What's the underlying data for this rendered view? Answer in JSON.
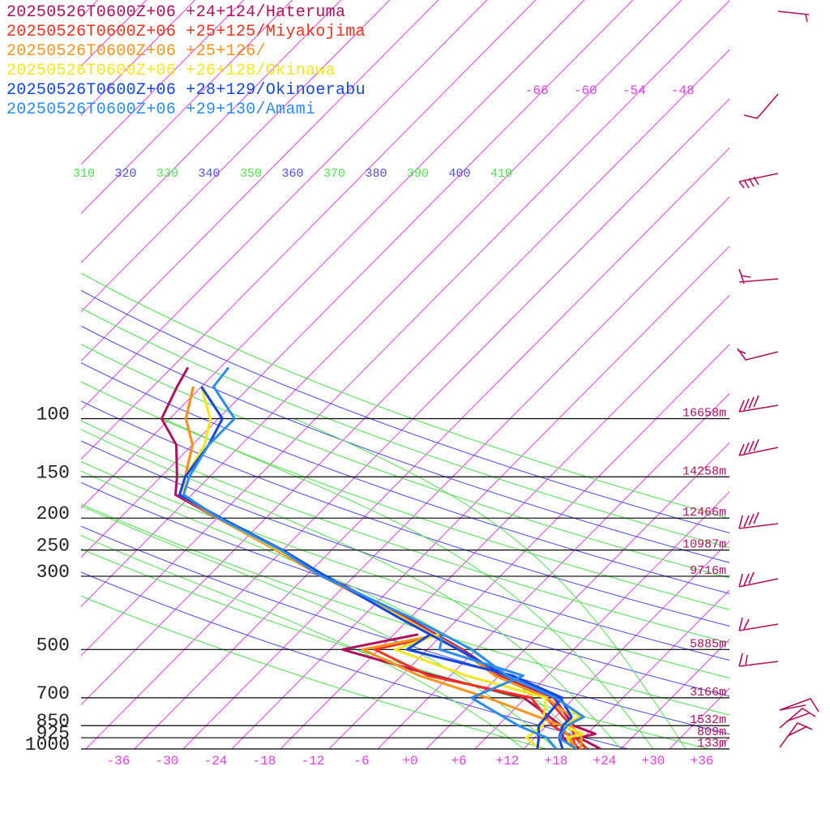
{
  "chart_data": {
    "type": "skew-t",
    "legend_placement": "top-left",
    "pressure_ticks": [
      "100",
      "150",
      "200",
      "250",
      "300",
      "500",
      "700",
      "850",
      "925",
      "1000"
    ],
    "temperature_ticks": [
      "-36",
      "-30",
      "-24",
      "-18",
      "-12",
      "-6",
      "+0",
      "+6",
      "+12",
      "+18",
      "+24",
      "+30",
      "+36"
    ],
    "upper_temperature_ticks": [
      "-66",
      "-60",
      "-54",
      "-48"
    ],
    "theta_labels": [
      "310",
      "320",
      "330",
      "340",
      "350",
      "360",
      "370",
      "380",
      "390",
      "400",
      "410"
    ],
    "height_labels": [
      {
        "p": 100,
        "text": "16658m"
      },
      {
        "p": 150,
        "text": "14258m"
      },
      {
        "p": 200,
        "text": "12466m"
      },
      {
        "p": 250,
        "text": "10987m"
      },
      {
        "p": 300,
        "text": "9716m"
      },
      {
        "p": 500,
        "text": "5885m"
      },
      {
        "p": 700,
        "text": "3166m"
      },
      {
        "p": 850,
        "text": "1532m"
      },
      {
        "p": 925,
        "text": "809m"
      },
      {
        "p": 1000,
        "text": "133m"
      }
    ],
    "series": [
      {
        "name": "20250526T0600Z+06 +24+124/Hateruma",
        "color": "#b0105c",
        "temperature": [
          [
            1000,
            23.5
          ],
          [
            925,
            19.5
          ],
          [
            900,
            21.0
          ],
          [
            850,
            17.3
          ],
          [
            700,
            11.5
          ],
          [
            600,
            2.3
          ],
          [
            500,
            -5.7
          ],
          [
            400,
            -16.5
          ],
          [
            300,
            -31.6
          ],
          [
            250,
            -40.5
          ],
          [
            200,
            -52.0
          ],
          [
            170,
            -60.0
          ],
          [
            150,
            -62.0
          ],
          [
            120,
            -66.0
          ],
          [
            100,
            -71.0
          ],
          [
            80,
            -73.0
          ],
          [
            70,
            -74.0
          ]
        ],
        "dewpoint": [
          [
            1000,
            21.0
          ],
          [
            925,
            17.5
          ],
          [
            850,
            15.8
          ],
          [
            700,
            7.8
          ],
          [
            600,
            -6.0
          ],
          [
            500,
            -20.5
          ],
          [
            450,
            -13.0
          ]
        ]
      },
      {
        "name": "20250526T0600Z+06 +25+125/Miyakojima",
        "color": "#f0321e",
        "temperature": [
          [
            1000,
            21.8
          ],
          [
            925,
            19.0
          ],
          [
            850,
            17.0
          ],
          [
            700,
            10.6
          ],
          [
            600,
            1.7
          ],
          [
            500,
            -6.0
          ],
          [
            400,
            -17.0
          ],
          [
            300,
            -32.0
          ],
          [
            250,
            -40.8
          ],
          [
            200,
            -52.0
          ],
          [
            170,
            -59.5
          ],
          [
            150,
            -61.0
          ],
          [
            120,
            -64.0
          ],
          [
            100,
            -68.0
          ],
          [
            80,
            -71.0
          ]
        ],
        "dewpoint": [
          [
            1000,
            20.5
          ],
          [
            925,
            18.7
          ],
          [
            850,
            14.7
          ],
          [
            700,
            8.7
          ],
          [
            600,
            -6.7
          ],
          [
            500,
            -16.5
          ],
          [
            450,
            -10.0
          ]
        ]
      },
      {
        "name": "20250526T0600Z+06 +25+126/",
        "color": "#f7941d",
        "temperature": [
          [
            1000,
            21.0
          ],
          [
            925,
            19.8
          ],
          [
            850,
            17.0
          ],
          [
            800,
            16.0
          ],
          [
            700,
            10.6
          ],
          [
            600,
            1.5
          ],
          [
            500,
            -6.0
          ],
          [
            400,
            -16.9
          ],
          [
            300,
            -32.0
          ],
          [
            250,
            -40.8
          ],
          [
            200,
            -52.0
          ],
          [
            170,
            -59.5
          ],
          [
            150,
            -61.0
          ],
          [
            120,
            -64.0
          ],
          [
            100,
            -68.0
          ],
          [
            80,
            -71.0
          ]
        ],
        "dewpoint": [
          [
            1000,
            20.5
          ],
          [
            925,
            18.3
          ],
          [
            850,
            15.8
          ],
          [
            700,
            3.3
          ],
          [
            600,
            -7.8
          ],
          [
            500,
            -18.0
          ],
          [
            450,
            -10.3
          ]
        ]
      },
      {
        "name": "20250526T0600Z+06 +26+128/Okinawa",
        "color": "#f5e61e",
        "temperature": [
          [
            1000,
            20.0
          ],
          [
            925,
            18.0
          ],
          [
            900,
            19.5
          ],
          [
            850,
            16.0
          ],
          [
            800,
            17.0
          ],
          [
            700,
            12.0
          ],
          [
            600,
            2.7
          ],
          [
            500,
            -6.2
          ],
          [
            400,
            -17.2
          ],
          [
            300,
            -31.6
          ],
          [
            250,
            -40.5
          ],
          [
            200,
            -51.8
          ],
          [
            170,
            -59.0
          ],
          [
            150,
            -61.0
          ],
          [
            120,
            -62.5
          ],
          [
            100,
            -65.0
          ],
          [
            80,
            -70.0
          ]
        ],
        "dewpoint": [
          [
            1000,
            16.0
          ],
          [
            925,
            13.0
          ],
          [
            850,
            13.5
          ],
          [
            700,
            10.5
          ],
          [
            600,
            -2.0
          ],
          [
            500,
            -14.0
          ],
          [
            450,
            -10.5
          ]
        ]
      },
      {
        "name": "20250526T0600Z+06 +28+129/Okinoerabu",
        "color": "#1446e6",
        "temperature": [
          [
            1000,
            18.8
          ],
          [
            925,
            17.0
          ],
          [
            850,
            16.0
          ],
          [
            800,
            16.0
          ],
          [
            700,
            12.3
          ],
          [
            600,
            2.8
          ],
          [
            500,
            -6.2
          ],
          [
            400,
            -17.5
          ],
          [
            300,
            -31.5
          ],
          [
            250,
            -40.0
          ],
          [
            200,
            -51.5
          ],
          [
            170,
            -59.5
          ],
          [
            150,
            -61.0
          ],
          [
            120,
            -62.0
          ],
          [
            100,
            -63.5
          ],
          [
            80,
            -70.0
          ]
        ],
        "dewpoint": [
          [
            1000,
            15.7
          ],
          [
            925,
            14.5
          ],
          [
            850,
            13.0
          ],
          [
            700,
            12.5
          ],
          [
            600,
            3.7
          ],
          [
            500,
            -12.5
          ],
          [
            450,
            -11.5
          ]
        ]
      },
      {
        "name": "20250526T0600Z+06 +29+130/Amami",
        "color": "#2c8cf0",
        "temperature": [
          [
            1000,
            20.5
          ],
          [
            925,
            17.0
          ],
          [
            850,
            16.5
          ],
          [
            800,
            17.5
          ],
          [
            700,
            11.7
          ],
          [
            600,
            3.0
          ],
          [
            500,
            -4.5
          ],
          [
            400,
            -16.0
          ],
          [
            300,
            -32.0
          ],
          [
            250,
            -40.2
          ],
          [
            200,
            -51.8
          ],
          [
            170,
            -59.0
          ],
          [
            150,
            -60.5
          ],
          [
            120,
            -62.0
          ],
          [
            100,
            -62.0
          ],
          [
            80,
            -68.5
          ],
          [
            70,
            -69.0
          ]
        ],
        "dewpoint": [
          [
            1000,
            18.0
          ],
          [
            925,
            15.5
          ],
          [
            850,
            10.5
          ],
          [
            700,
            1.3
          ],
          [
            600,
            5.0
          ],
          [
            500,
            -8.5
          ],
          [
            450,
            -10.0
          ]
        ]
      }
    ]
  }
}
